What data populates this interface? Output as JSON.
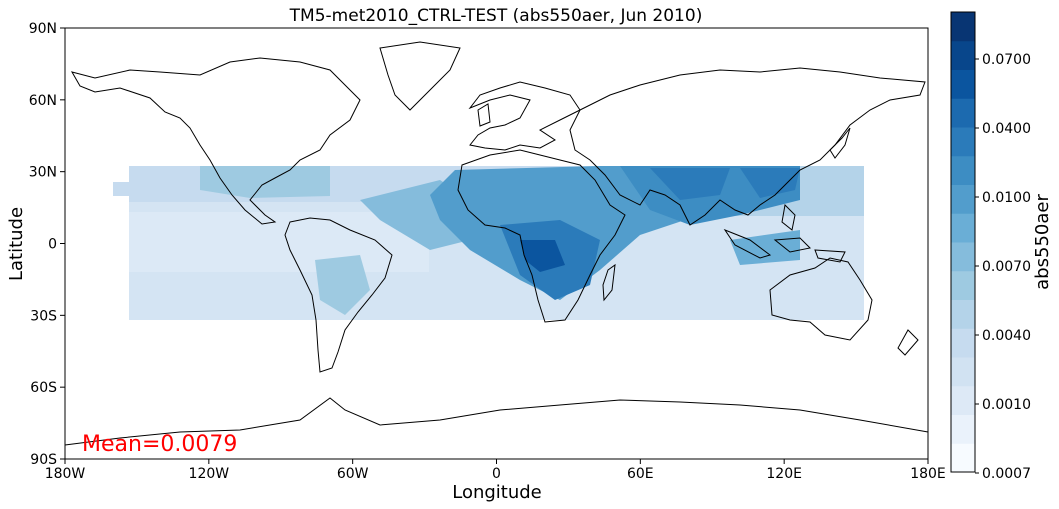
{
  "title": "TM5-met2010_CTRL-TEST (abs550aer, Jun 2010)",
  "xlabel": "Longitude",
  "ylabel": "Latitude",
  "mean_label": "Mean=0.0079",
  "mean_color": "#ff0000",
  "colorbar": {
    "label": "abs550aer",
    "ticks": [
      "0.0700",
      "0.0400",
      "0.0100",
      "0.0070",
      "0.0040",
      "0.0010",
      "0.0007"
    ],
    "colors": [
      "#f7fbff",
      "#eaf2fb",
      "#dde9f6",
      "#d1e2f2",
      "#c6dbef",
      "#b4d3e9",
      "#9ecae1",
      "#85bcdc",
      "#6aaed6",
      "#529dcc",
      "#3d8dc3",
      "#2b7bba",
      "#1c6aaf",
      "#0b559f",
      "#08468b",
      "#083573"
    ],
    "scale": "categorical (irregular bounds)"
  },
  "map": {
    "projection": "PlateCarree",
    "xticks": [
      "180W",
      "120W",
      "60W",
      "0",
      "60E",
      "120E",
      "180E"
    ],
    "yticks": [
      "90N",
      "60N",
      "30N",
      "0",
      "30S",
      "60S",
      "90S"
    ],
    "data_extent": {
      "lon": [
        -150,
        152
      ],
      "lat": [
        -32,
        32
      ]
    },
    "coastlines": true
  }
}
